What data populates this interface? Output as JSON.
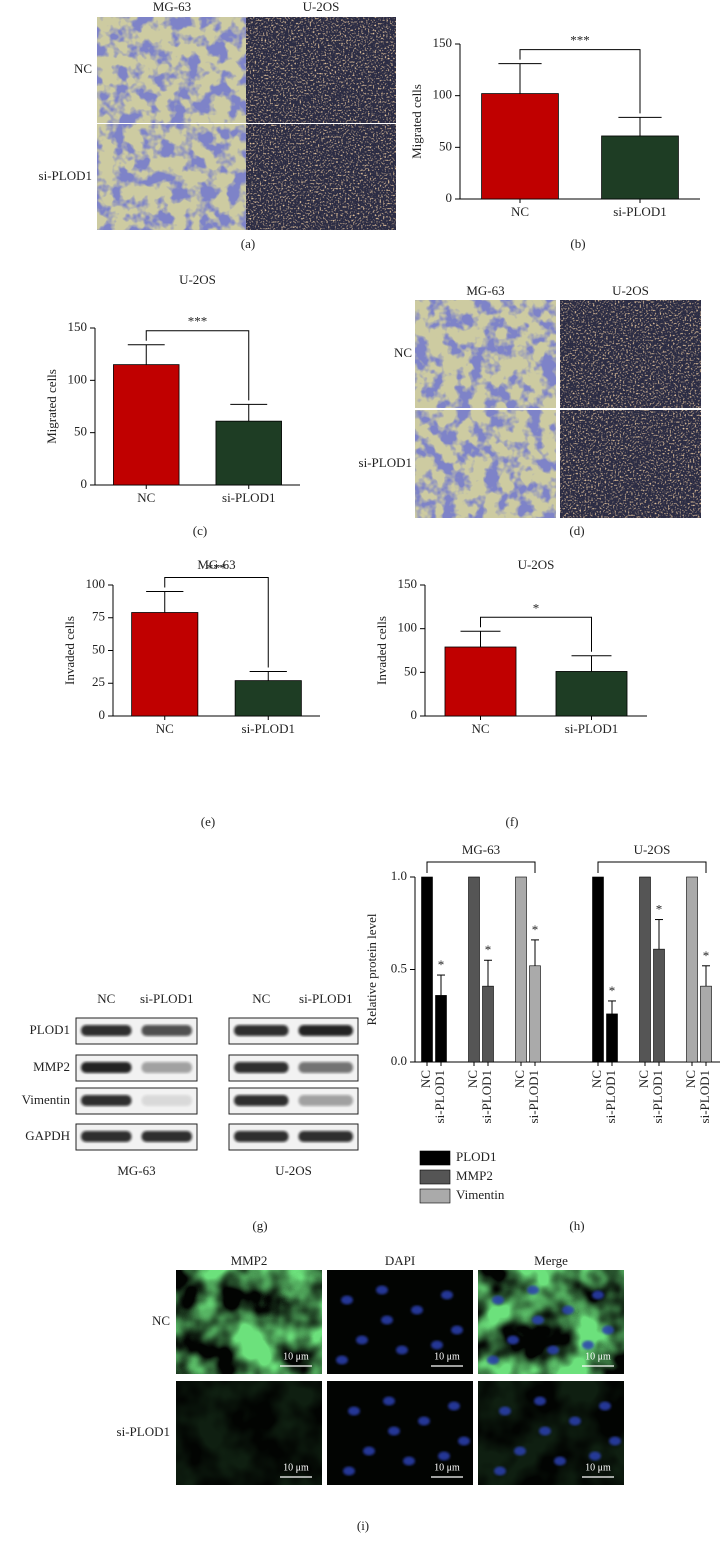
{
  "panels": {
    "a": {
      "label": "(a)",
      "columns": [
        "MG-63",
        "U-2OS"
      ],
      "rows": [
        "NC",
        "si-PLOD1"
      ]
    },
    "d": {
      "label": "(d)",
      "columns": [
        "MG-63",
        "U-2OS"
      ],
      "rows": [
        "NC",
        "si-PLOD1"
      ]
    },
    "g": {
      "label": "(g)",
      "lanes": [
        "NC",
        "si-PLOD1"
      ],
      "proteins": [
        "PLOD1",
        "MMP2",
        "Vimentin",
        "GAPDH"
      ],
      "cell_lines": [
        "MG-63",
        "U-2OS"
      ]
    },
    "i": {
      "label": "(i)",
      "columns": [
        "MMP2",
        "DAPI",
        "Merge"
      ],
      "rows": [
        "NC",
        "si-PLOD1"
      ],
      "scale_bar": "10 μm"
    }
  },
  "chart_data": [
    {
      "type": "bar",
      "panel_label": "(b)",
      "y_label": "Migrated cells",
      "categories": [
        "NC",
        "si-PLOD1"
      ],
      "values": [
        102,
        61
      ],
      "errors": [
        29,
        18
      ],
      "colors": [
        "#c00000",
        "#1e3d24"
      ],
      "ylim": [
        0,
        150
      ],
      "yticks": [
        0,
        50,
        100,
        150
      ],
      "annotation": "***"
    },
    {
      "type": "bar",
      "title": "U-2OS",
      "panel_label": "(c)",
      "y_label": "Migrated cells",
      "categories": [
        "NC",
        "si-PLOD1"
      ],
      "values": [
        115,
        61
      ],
      "errors": [
        19,
        16
      ],
      "colors": [
        "#c00000",
        "#1e3d24"
      ],
      "ylim": [
        0,
        150
      ],
      "yticks": [
        0,
        50,
        100,
        150
      ],
      "annotation": "***"
    },
    {
      "type": "bar",
      "title": "MG-63",
      "panel_label": "(e)",
      "y_label": "Invaded cells",
      "categories": [
        "NC",
        "si-PLOD1"
      ],
      "values": [
        79,
        27
      ],
      "errors": [
        16,
        7
      ],
      "colors": [
        "#c00000",
        "#1e3d24"
      ],
      "ylim": [
        0,
        100
      ],
      "yticks": [
        0,
        25,
        50,
        75,
        100
      ],
      "annotation": "***"
    },
    {
      "type": "bar",
      "title": "U-2OS",
      "panel_label": "(f)",
      "y_label": "Invaded cells",
      "categories": [
        "NC",
        "si-PLOD1"
      ],
      "values": [
        79,
        51
      ],
      "errors": [
        18,
        18
      ],
      "colors": [
        "#c00000",
        "#1e3d24"
      ],
      "ylim": [
        0,
        150
      ],
      "yticks": [
        0,
        50,
        100,
        150
      ],
      "annotation": "*"
    },
    {
      "type": "grouped_bar",
      "panel_label": "(h)",
      "y_label": "Relative protein level",
      "groups": [
        "MG-63",
        "U-2OS"
      ],
      "categories": [
        "NC",
        "si-PLOD1",
        "NC",
        "si-PLOD1",
        "NC",
        "si-PLOD1",
        "NC",
        "si-PLOD1",
        "NC",
        "si-PLOD1",
        "NC",
        "si-PLOD1"
      ],
      "series": [
        {
          "name": "PLOD1",
          "color": "#000000",
          "values": [
            1.0,
            0.36,
            null,
            null,
            null,
            null,
            1.0,
            0.26,
            null,
            null,
            null,
            null
          ],
          "errors": [
            null,
            0.11,
            null,
            null,
            null,
            null,
            null,
            0.07,
            null,
            null,
            null,
            null
          ],
          "significance": [
            null,
            "*",
            null,
            null,
            null,
            null,
            null,
            "*",
            null,
            null,
            null,
            null
          ]
        },
        {
          "name": "MMP2",
          "color": "#555555",
          "values": [
            null,
            null,
            1.0,
            0.41,
            null,
            null,
            null,
            null,
            1.0,
            0.61,
            null,
            null
          ],
          "errors": [
            null,
            null,
            null,
            0.14,
            null,
            null,
            null,
            null,
            null,
            0.16,
            null,
            null
          ],
          "significance": [
            null,
            null,
            null,
            "*",
            null,
            null,
            null,
            null,
            null,
            "*",
            null,
            null
          ]
        },
        {
          "name": "Vimentin",
          "color": "#aaaaaa",
          "values": [
            null,
            null,
            null,
            null,
            1.0,
            0.52,
            null,
            null,
            null,
            null,
            1.0,
            0.41
          ],
          "errors": [
            null,
            null,
            null,
            null,
            null,
            0.14,
            null,
            null,
            null,
            null,
            null,
            0.11
          ],
          "significance": [
            null,
            null,
            null,
            null,
            null,
            "*",
            null,
            null,
            null,
            null,
            null,
            "*"
          ]
        }
      ],
      "ylim": [
        0,
        1
      ],
      "yticks": [
        {
          "value": 0,
          "label": "0.0"
        },
        0.5,
        {
          "value": 1,
          "label": "1.0"
        }
      ]
    }
  ]
}
